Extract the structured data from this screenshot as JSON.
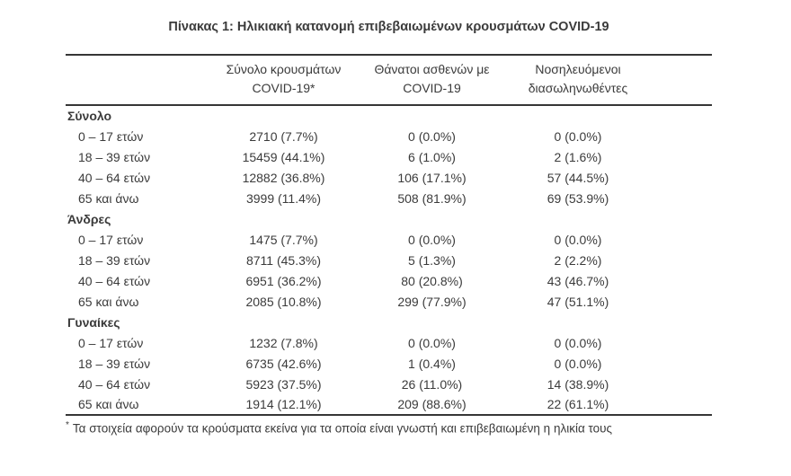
{
  "title": "Πίνακας 1: Ηλικιακή κατανομή επιβεβαιωμένων κρουσμάτων COVID-19",
  "colors": {
    "background": "#ffffff",
    "text": "#3b3b3b",
    "rule": "#363636"
  },
  "table": {
    "columns": [
      {
        "line1": "Σύνολο κρουσμάτων",
        "line2": "COVID-19*"
      },
      {
        "line1": "Θάνατοι ασθενών με",
        "line2": "COVID-19"
      },
      {
        "line1": "Νοσηλευόμενοι",
        "line2": "διασωληνωθέντες"
      }
    ],
    "sections": [
      {
        "label": "Σύνολο",
        "rows": [
          {
            "label": "0 – 17 ετών",
            "cases": "2710 (7.7%)",
            "deaths": "0 (0.0%)",
            "intubated": "0 (0.0%)"
          },
          {
            "label": "18 – 39 ετών",
            "cases": "15459 (44.1%)",
            "deaths": "6 (1.0%)",
            "intubated": "2 (1.6%)"
          },
          {
            "label": "40 – 64 ετών",
            "cases": "12882 (36.8%)",
            "deaths": "106 (17.1%)",
            "intubated": "57 (44.5%)"
          },
          {
            "label": "65 και άνω",
            "cases": "3999 (11.4%)",
            "deaths": "508 (81.9%)",
            "intubated": "69 (53.9%)"
          }
        ]
      },
      {
        "label": "Άνδρες",
        "rows": [
          {
            "label": "0 – 17 ετών",
            "cases": "1475 (7.7%)",
            "deaths": "0 (0.0%)",
            "intubated": "0 (0.0%)"
          },
          {
            "label": "18 – 39 ετών",
            "cases": "8711 (45.3%)",
            "deaths": "5 (1.3%)",
            "intubated": "2 (2.2%)"
          },
          {
            "label": "40 – 64 ετών",
            "cases": "6951 (36.2%)",
            "deaths": "80 (20.8%)",
            "intubated": "43 (46.7%)"
          },
          {
            "label": "65 και άνω",
            "cases": "2085 (10.8%)",
            "deaths": "299 (77.9%)",
            "intubated": "47 (51.1%)"
          }
        ]
      },
      {
        "label": "Γυναίκες",
        "rows": [
          {
            "label": "0 – 17 ετών",
            "cases": "1232 (7.8%)",
            "deaths": "0 (0.0%)",
            "intubated": "0 (0.0%)"
          },
          {
            "label": "18 – 39 ετών",
            "cases": "6735 (42.6%)",
            "deaths": "1 (0.4%)",
            "intubated": "0 (0.0%)"
          },
          {
            "label": "40 – 64 ετών",
            "cases": "5923 (37.5%)",
            "deaths": "26 (11.0%)",
            "intubated": "14 (38.9%)"
          },
          {
            "label": "65 και άνω",
            "cases": "1914 (12.1%)",
            "deaths": "209 (88.6%)",
            "intubated": "22 (61.1%)"
          }
        ]
      }
    ]
  },
  "footnote": {
    "marker": "*",
    "text": "Τα στοιχεία αφορούν τα κρούσματα εκείνα για τα οποία είναι γνωστή και επιβεβαιωμένη η ηλικία τους"
  }
}
